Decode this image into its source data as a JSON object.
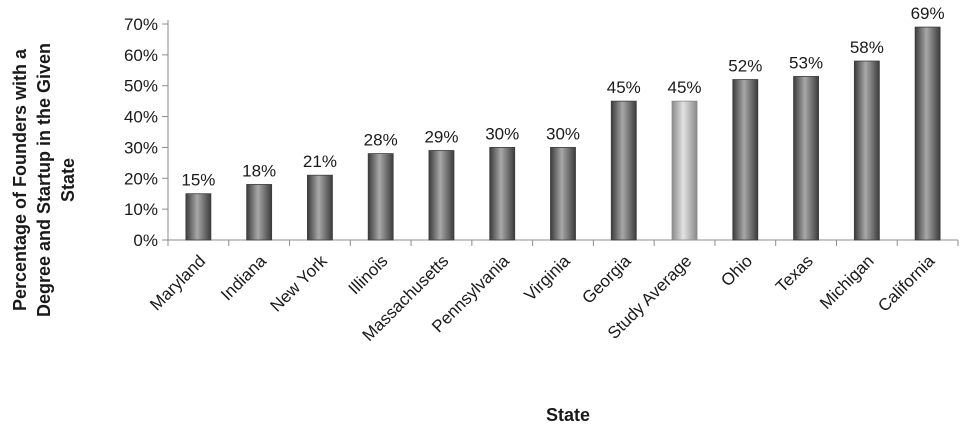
{
  "chart_data": {
    "type": "bar",
    "title": "",
    "xlabel": "State",
    "ylabel": "Percentage of Founders with a Degree and Startup in the Given State",
    "ylabel_lines": [
      "Percentage of Founders with a",
      "Degree and Startup in the Given",
      "State"
    ],
    "ylim": [
      0,
      70
    ],
    "ytick_values": [
      0,
      10,
      20,
      30,
      40,
      50,
      60,
      70
    ],
    "ytick_labels": [
      "0%",
      "10%",
      "20%",
      "30%",
      "40%",
      "50%",
      "60%",
      "70%"
    ],
    "grid": false,
    "legend": "none",
    "categories": [
      "Maryland",
      "Indiana",
      "New York",
      "Illinois",
      "Massachusetts",
      "Pennsylvania",
      "Virginia",
      "Georgia",
      "Study Average",
      "Ohio",
      "Texas",
      "Michigan",
      "California"
    ],
    "values": [
      15,
      18,
      21,
      28,
      29,
      30,
      30,
      45,
      45,
      52,
      53,
      58,
      69
    ],
    "data_labels": [
      "15%",
      "18%",
      "21%",
      "28%",
      "29%",
      "30%",
      "30%",
      "45%",
      "45%",
      "52%",
      "53%",
      "58%",
      "69%"
    ],
    "highlight_category": "Study Average",
    "colors": {
      "bar": "#7a7a7a",
      "bar_light": "#a8a8a8",
      "bar_dark": "#3c3c3c",
      "highlight": "#bdbdbd",
      "highlight_light": "#e2e2e2",
      "highlight_dark": "#8a8a8a",
      "axis": "#8c8c8c",
      "text": "#1a1a1a"
    }
  }
}
